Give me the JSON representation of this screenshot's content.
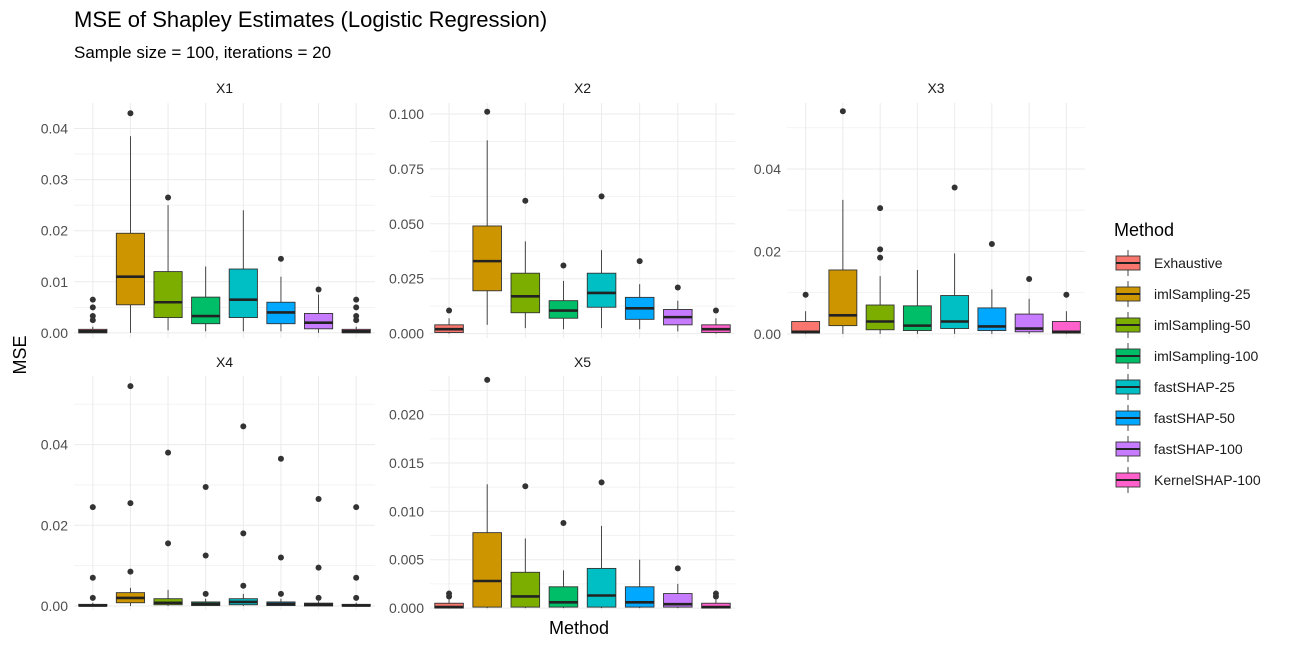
{
  "chart_data": {
    "type": "boxplot",
    "title": "MSE of Shapley Estimates (Logistic Regression)",
    "subtitle": "Sample size = 100, iterations = 20",
    "xlabel": "Method",
    "ylabel": "MSE",
    "legend_title": "Method",
    "legend_position": "right",
    "grid": true,
    "methods": [
      "Exhaustive",
      "imlSampling-25",
      "imlSampling-50",
      "imlSampling-100",
      "fastSHAP-25",
      "fastSHAP-50",
      "fastSHAP-100",
      "KernelSHAP-100"
    ],
    "colors": [
      "#F8766D",
      "#CD9600",
      "#7CAE00",
      "#00BE67",
      "#00BFC4",
      "#00A9FF",
      "#C77CFF",
      "#FF61CC"
    ],
    "panels": [
      {
        "strip": "X1",
        "ylim": [
          -0.001,
          0.045
        ],
        "yticks": [
          0.0,
          0.01,
          0.02,
          0.03,
          0.04
        ],
        "ytick_labels": [
          "0.00",
          "0.01",
          "0.02",
          "0.03",
          "0.04"
        ],
        "boxes": [
          {
            "min": 0.0,
            "q1": 0.0,
            "median": 0.0003,
            "q3": 0.0007,
            "max": 0.0012,
            "outliers": [
              0.0065,
              0.005,
              0.0033,
              0.0025
            ]
          },
          {
            "min": 0.0,
            "q1": 0.0055,
            "median": 0.011,
            "q3": 0.0195,
            "max": 0.0385,
            "outliers": [
              0.043
            ]
          },
          {
            "min": 0.0005,
            "q1": 0.003,
            "median": 0.006,
            "q3": 0.012,
            "max": 0.025,
            "outliers": [
              0.0265
            ]
          },
          {
            "min": 0.0003,
            "q1": 0.0018,
            "median": 0.0033,
            "q3": 0.007,
            "max": 0.013,
            "outliers": []
          },
          {
            "min": 0.0003,
            "q1": 0.003,
            "median": 0.0065,
            "q3": 0.0125,
            "max": 0.024,
            "outliers": []
          },
          {
            "min": 0.0003,
            "q1": 0.0018,
            "median": 0.004,
            "q3": 0.006,
            "max": 0.011,
            "outliers": [
              0.0145
            ]
          },
          {
            "min": 0.0,
            "q1": 0.0008,
            "median": 0.002,
            "q3": 0.0038,
            "max": 0.0075,
            "outliers": [
              0.0085
            ]
          },
          {
            "min": 0.0,
            "q1": 0.0,
            "median": 0.0003,
            "q3": 0.0007,
            "max": 0.0012,
            "outliers": [
              0.0065,
              0.005,
              0.0033,
              0.0025
            ]
          }
        ]
      },
      {
        "strip": "X2",
        "ylim": [
          -0.002,
          0.105
        ],
        "yticks": [
          0.0,
          0.025,
          0.05,
          0.075,
          0.1
        ],
        "ytick_labels": [
          "0.000",
          "0.025",
          "0.050",
          "0.075",
          "0.100"
        ],
        "boxes": [
          {
            "min": 0.0,
            "q1": 0.0005,
            "median": 0.002,
            "q3": 0.004,
            "max": 0.007,
            "outliers": [
              0.0105
            ]
          },
          {
            "min": 0.004,
            "q1": 0.0195,
            "median": 0.033,
            "q3": 0.049,
            "max": 0.088,
            "outliers": [
              0.101
            ]
          },
          {
            "min": 0.0025,
            "q1": 0.0095,
            "median": 0.017,
            "q3": 0.0275,
            "max": 0.042,
            "outliers": [
              0.0605
            ]
          },
          {
            "min": 0.002,
            "q1": 0.007,
            "median": 0.0105,
            "q3": 0.015,
            "max": 0.024,
            "outliers": [
              0.031
            ]
          },
          {
            "min": 0.0025,
            "q1": 0.012,
            "median": 0.0185,
            "q3": 0.0275,
            "max": 0.038,
            "outliers": [
              0.0625
            ]
          },
          {
            "min": 0.002,
            "q1": 0.0065,
            "median": 0.0115,
            "q3": 0.0165,
            "max": 0.0225,
            "outliers": [
              0.033
            ]
          },
          {
            "min": 0.001,
            "q1": 0.004,
            "median": 0.0075,
            "q3": 0.011,
            "max": 0.015,
            "outliers": [
              0.021
            ]
          },
          {
            "min": 0.0,
            "q1": 0.0005,
            "median": 0.002,
            "q3": 0.004,
            "max": 0.007,
            "outliers": [
              0.0105
            ]
          }
        ]
      },
      {
        "strip": "X3",
        "ylim": [
          -0.001,
          0.056
        ],
        "yticks": [
          0.0,
          0.02,
          0.04
        ],
        "ytick_labels": [
          "0.00",
          "0.02",
          "0.04"
        ],
        "boxes": [
          {
            "min": 0.0,
            "q1": 0.0002,
            "median": 0.0005,
            "q3": 0.003,
            "max": 0.0055,
            "outliers": [
              0.0095
            ]
          },
          {
            "min": 0.0,
            "q1": 0.002,
            "median": 0.0045,
            "q3": 0.0155,
            "max": 0.0325,
            "outliers": [
              0.054
            ]
          },
          {
            "min": 0.0,
            "q1": 0.001,
            "median": 0.003,
            "q3": 0.007,
            "max": 0.014,
            "outliers": [
              0.0305,
              0.0205,
              0.0185
            ]
          },
          {
            "min": 0.0,
            "q1": 0.0008,
            "median": 0.002,
            "q3": 0.0068,
            "max": 0.0155,
            "outliers": []
          },
          {
            "min": 0.0,
            "q1": 0.0013,
            "median": 0.003,
            "q3": 0.0093,
            "max": 0.0195,
            "outliers": [
              0.0355
            ]
          },
          {
            "min": 0.0,
            "q1": 0.0008,
            "median": 0.0018,
            "q3": 0.0063,
            "max": 0.0108,
            "outliers": [
              0.0218
            ]
          },
          {
            "min": 0.0,
            "q1": 0.0005,
            "median": 0.0013,
            "q3": 0.0048,
            "max": 0.0085,
            "outliers": [
              0.0133
            ]
          },
          {
            "min": 0.0,
            "q1": 0.0002,
            "median": 0.0005,
            "q3": 0.003,
            "max": 0.0055,
            "outliers": [
              0.0095
            ]
          }
        ]
      },
      {
        "strip": "X4",
        "ylim": [
          -0.001,
          0.057
        ],
        "yticks": [
          0.0,
          0.02,
          0.04
        ],
        "ytick_labels": [
          "0.00",
          "0.02",
          "0.04"
        ],
        "boxes": [
          {
            "min": 0.0,
            "q1": 0.0,
            "median": 0.0001,
            "q3": 0.0004,
            "max": 0.0008,
            "outliers": [
              0.0245,
              0.007,
              0.002
            ]
          },
          {
            "min": 0.0,
            "q1": 0.0008,
            "median": 0.002,
            "q3": 0.0033,
            "max": 0.0045,
            "outliers": [
              0.0545,
              0.0255,
              0.0085
            ]
          },
          {
            "min": 0.0,
            "q1": 0.0003,
            "median": 0.0008,
            "q3": 0.0018,
            "max": 0.004,
            "outliers": [
              0.038,
              0.0155
            ]
          },
          {
            "min": 0.0,
            "q1": 0.0001,
            "median": 0.0005,
            "q3": 0.001,
            "max": 0.0018,
            "outliers": [
              0.0295,
              0.0125,
              0.003
            ]
          },
          {
            "min": 0.0,
            "q1": 0.0003,
            "median": 0.001,
            "q3": 0.0018,
            "max": 0.003,
            "outliers": [
              0.0445,
              0.018,
              0.005
            ]
          },
          {
            "min": 0.0,
            "q1": 0.0001,
            "median": 0.0005,
            "q3": 0.001,
            "max": 0.0018,
            "outliers": [
              0.0365,
              0.012,
              0.003
            ]
          },
          {
            "min": 0.0,
            "q1": 0.0,
            "median": 0.0003,
            "q3": 0.0007,
            "max": 0.0012,
            "outliers": [
              0.0265,
              0.0095,
              0.002
            ]
          },
          {
            "min": 0.0,
            "q1": 0.0,
            "median": 0.0001,
            "q3": 0.0004,
            "max": 0.0008,
            "outliers": [
              0.0245,
              0.007,
              0.002
            ]
          }
        ]
      },
      {
        "strip": "X5",
        "ylim": [
          -0.0002,
          0.024
        ],
        "yticks": [
          0.0,
          0.005,
          0.01,
          0.015,
          0.02
        ],
        "ytick_labels": [
          "0.000",
          "0.005",
          "0.010",
          "0.015",
          "0.020"
        ],
        "boxes": [
          {
            "min": 0.0,
            "q1": 0.0,
            "median": 0.0001,
            "q3": 0.0005,
            "max": 0.0009,
            "outliers": [
              0.0015,
              0.0012
            ]
          },
          {
            "min": 0.0,
            "q1": 0.0001,
            "median": 0.0028,
            "q3": 0.0078,
            "max": 0.0128,
            "outliers": [
              0.0236
            ]
          },
          {
            "min": 0.0,
            "q1": 0.0001,
            "median": 0.0012,
            "q3": 0.0037,
            "max": 0.0072,
            "outliers": [
              0.0126
            ]
          },
          {
            "min": 0.0,
            "q1": 0.0001,
            "median": 0.0006,
            "q3": 0.0022,
            "max": 0.0039,
            "outliers": [
              0.0088
            ]
          },
          {
            "min": 0.0,
            "q1": 0.0001,
            "median": 0.0013,
            "q3": 0.0041,
            "max": 0.0085,
            "outliers": [
              0.013
            ]
          },
          {
            "min": 0.0,
            "q1": 0.0001,
            "median": 0.0006,
            "q3": 0.0022,
            "max": 0.005,
            "outliers": []
          },
          {
            "min": 0.0,
            "q1": 0.0001,
            "median": 0.0004,
            "q3": 0.0015,
            "max": 0.0025,
            "outliers": [
              0.0041
            ]
          },
          {
            "min": 0.0,
            "q1": 0.0,
            "median": 0.0001,
            "q3": 0.0005,
            "max": 0.0009,
            "outliers": [
              0.0015,
              0.0012
            ]
          }
        ]
      }
    ]
  }
}
